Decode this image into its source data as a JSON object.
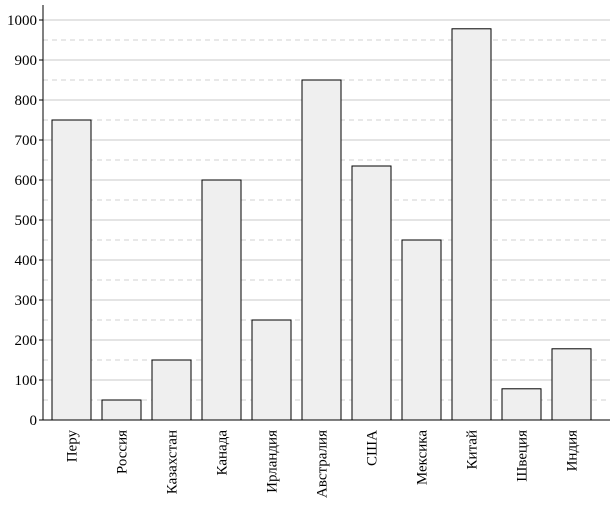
{
  "chart_data": {
    "type": "bar",
    "categories": [
      "Перу",
      "Россия",
      "Казахстан",
      "Канада",
      "Ирландия",
      "Австралия",
      "США",
      "Мексика",
      "Китай",
      "Швеция",
      "Индия"
    ],
    "values": [
      750,
      50,
      150,
      600,
      250,
      850,
      635,
      450,
      978,
      78,
      178
    ],
    "color": "#efefef",
    "ylim": [
      0,
      1000
    ],
    "yticks": [
      0,
      100,
      200,
      300,
      400,
      500,
      600,
      700,
      800,
      900,
      1000
    ],
    "grid": true
  }
}
